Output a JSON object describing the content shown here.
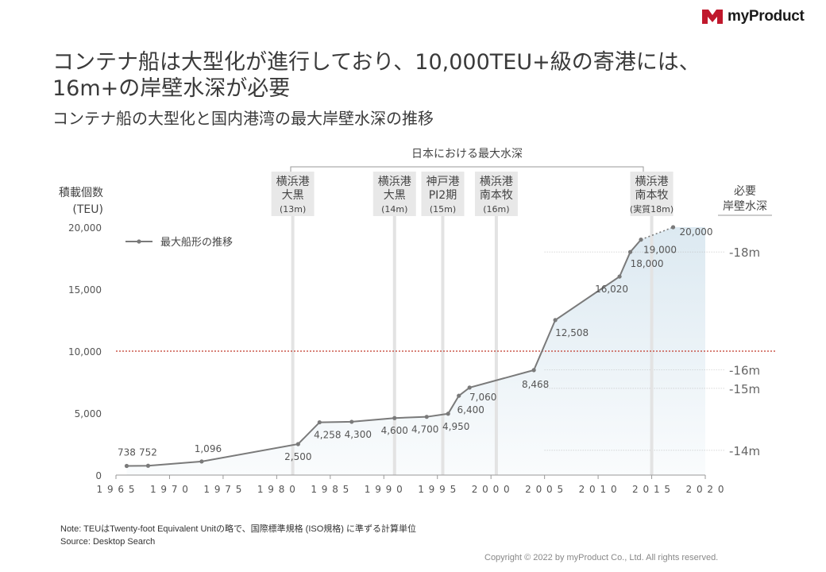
{
  "brand": {
    "name": "myProduct",
    "accent": "#c0182c"
  },
  "title": "コンテナ船は大型化が進行しており、10,000TEU+級の寄港には、16m+の岸壁水深が必要",
  "subtitle": "コンテナ船の大型化と国内港湾の最大岸壁水深の推移",
  "note": "Note: TEUはTwenty-foot  Equivalent  Unitの略で、国際標準規格 (ISO規格) に準ずる計算単位",
  "source": "Source: Desktop Search",
  "copyright": "Copyright © 2022 by myProduct Co., Ltd.  All rights reserved.",
  "chart_data": {
    "type": "line",
    "ylabel": [
      "積載個数",
      "(TEU)"
    ],
    "xlim": [
      1965,
      2020
    ],
    "ylim": [
      0,
      20000
    ],
    "x_ticks": [
      1965,
      1970,
      1975,
      1980,
      1985,
      1990,
      1995,
      2000,
      2005,
      2010,
      2015,
      2020
    ],
    "y_ticks": [
      0,
      5000,
      10000,
      15000,
      20000
    ],
    "y_tick_labels": [
      "0",
      "5,000",
      "10,000",
      "15,000",
      "20,000"
    ],
    "grid": false,
    "legend": {
      "label": "最大船形の推移",
      "position": "top-left"
    },
    "series": [
      {
        "name": "最大船形の推移",
        "color": "#7a7a7a",
        "points": [
          {
            "x": 1966,
            "y": 738,
            "label": "738"
          },
          {
            "x": 1968,
            "y": 752,
            "label": "752"
          },
          {
            "x": 1973,
            "y": 1096,
            "label": "1,096"
          },
          {
            "x": 1982,
            "y": 2500,
            "label": "2,500"
          },
          {
            "x": 1984,
            "y": 4258,
            "label": "4,258"
          },
          {
            "x": 1987,
            "y": 4300,
            "label": "4,300"
          },
          {
            "x": 1991,
            "y": 4600,
            "label": "4,600"
          },
          {
            "x": 1994,
            "y": 4700,
            "label": "4,700"
          },
          {
            "x": 1996,
            "y": 4950,
            "label": "4,950"
          },
          {
            "x": 1997,
            "y": 6400,
            "label": "6,400"
          },
          {
            "x": 1998,
            "y": 7060,
            "label": "7,060"
          },
          {
            "x": 2004,
            "y": 8468,
            "label": "8,468"
          },
          {
            "x": 2006,
            "y": 12508,
            "label": "12,508"
          },
          {
            "x": 2012,
            "y": 16020,
            "label": "16,020"
          },
          {
            "x": 2013,
            "y": 18000,
            "label": "18,000"
          },
          {
            "x": 2014,
            "y": 19000,
            "label": "19,000"
          }
        ],
        "projection": {
          "x": 2017,
          "y": 20000,
          "label": "20,000"
        }
      }
    ],
    "threshold": {
      "y": 10000,
      "color": "#c0392b"
    },
    "required_depth": {
      "header": [
        "必要",
        "岸壁水深"
      ],
      "levels": [
        {
          "teu": 2000,
          "label": "-14m"
        },
        {
          "teu": 7000,
          "label": "-15m"
        },
        {
          "teu": 8500,
          "label": "-16m"
        },
        {
          "teu": 18000,
          "label": "-18m"
        }
      ],
      "shade_color": "#dce9f1"
    },
    "depth_group_label": "日本における最大水深",
    "port_markers": [
      {
        "x": 1981.5,
        "name": [
          "横浜港",
          "大黒"
        ],
        "depth": "(13m)"
      },
      {
        "x": 1991,
        "name": [
          "横浜港",
          "大黒"
        ],
        "depth": "(14m)"
      },
      {
        "x": 1995.5,
        "name": [
          "神戸港",
          "PI2期"
        ],
        "depth": "(15m)"
      },
      {
        "x": 2000.5,
        "name": [
          "横浜港",
          "南本牧"
        ],
        "depth": "(16m)"
      },
      {
        "x": 2015,
        "name": [
          "横浜港",
          "南本牧"
        ],
        "depth": "(実質18m)"
      }
    ]
  }
}
